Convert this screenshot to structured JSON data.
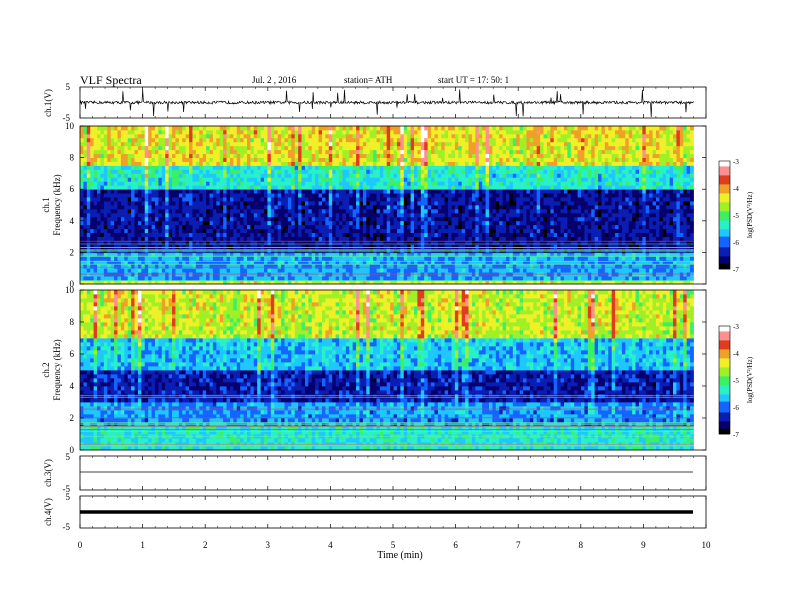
{
  "header": {
    "title": "VLF  Spectra",
    "date": "Jul.  2  , 2016",
    "station": "station= ATH",
    "start": "start  UT  =    17: 50: 1"
  },
  "colors": {
    "colormap": [
      "#000000",
      "#06006e",
      "#0a1eb4",
      "#1464ff",
      "#1ec8ff",
      "#28f0c8",
      "#3cf064",
      "#a0f028",
      "#f0f028",
      "#f0a028",
      "#e03c1e",
      "#ff9090",
      "#ffffff"
    ],
    "trace": "#000000",
    "axis": "#000000"
  },
  "chart_data": [
    {
      "type": "line",
      "name": "ch1-waveform",
      "ylabel": "ch.1(V)",
      "ylim": [
        -5,
        5
      ],
      "yticks": [
        "5",
        "-5"
      ],
      "xlim": [
        0,
        10
      ],
      "description_level": 0,
      "grid": false
    },
    {
      "type": "heatmap",
      "name": "ch1-spectrogram",
      "ylabel_top": "ch.1",
      "ylabel": "Frequency  (kHz)",
      "ylim": [
        0,
        10
      ],
      "yticks": [
        "0",
        "2",
        "4",
        "6",
        "8",
        "10"
      ],
      "xlim": [
        0,
        10
      ],
      "data_extent_min": 9.8,
      "colorbar": {
        "label": "log(PSD(V²/Hz)",
        "range": [
          -7,
          -3
        ],
        "ticks": [
          "-3",
          "-4",
          "-5",
          "-6",
          "-7"
        ]
      },
      "band_profile_khz": [
        {
          "f": [
            0,
            0.3
          ],
          "level": -4.5
        },
        {
          "f": [
            0.3,
            2
          ],
          "level": -5.8
        },
        {
          "f": [
            2,
            6
          ],
          "level": -6.6
        },
        {
          "f": [
            6,
            7.5
          ],
          "level": -5.6
        },
        {
          "f": [
            7.5,
            10
          ],
          "level": -4.6
        }
      ]
    },
    {
      "type": "heatmap",
      "name": "ch2-spectrogram",
      "ylabel_top": "ch.2",
      "ylabel": "Frequency  (kHz)",
      "ylim": [
        0,
        10
      ],
      "yticks": [
        "0",
        "2",
        "4",
        "6",
        "8",
        "10"
      ],
      "xlim": [
        0,
        10
      ],
      "data_extent_min": 9.8,
      "colorbar": {
        "label": "log(PSD(V²/Hz)",
        "range": [
          -7,
          -3
        ],
        "ticks": [
          "-3",
          "-4",
          "-5",
          "-6",
          "-7"
        ]
      },
      "band_profile_khz": [
        {
          "f": [
            0,
            1.5
          ],
          "level": -5.4
        },
        {
          "f": [
            1.5,
            3
          ],
          "level": -5.9
        },
        {
          "f": [
            3,
            5
          ],
          "level": -6.5
        },
        {
          "f": [
            5,
            7
          ],
          "level": -5.8
        },
        {
          "f": [
            7,
            10
          ],
          "level": -4.7
        }
      ]
    },
    {
      "type": "line",
      "name": "ch3-waveform",
      "ylabel": "ch.3(V)",
      "ylim": [
        -5,
        5
      ],
      "yticks": [
        "5",
        "-5"
      ],
      "xlim": [
        0,
        10
      ],
      "level": 0
    },
    {
      "type": "line",
      "name": "ch4-waveform",
      "ylabel": "ch.4(V)",
      "ylim": [
        -5,
        5
      ],
      "yticks": [
        "5",
        "-5"
      ],
      "xlim": [
        0,
        10
      ],
      "level": 0,
      "xlabel": "Time  (min)",
      "xticks": [
        "0",
        "1",
        "2",
        "3",
        "4",
        "5",
        "6",
        "7",
        "8",
        "9",
        "10"
      ]
    }
  ]
}
